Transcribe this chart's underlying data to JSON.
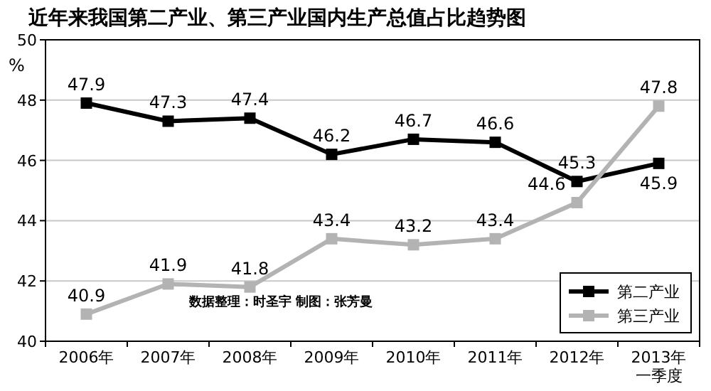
{
  "chart_data": {
    "type": "line",
    "title": "近年来我国第二产业、第三产业国内生产总值占比趋势图",
    "ylabel": "%",
    "categories": [
      "2006年",
      "2007年",
      "2008年",
      "2009年",
      "2010年",
      "2011年",
      "2012年",
      "2013年一季度"
    ],
    "series": [
      {
        "name": "第二产业",
        "color": "#000000",
        "values": [
          47.9,
          47.3,
          47.4,
          46.2,
          46.7,
          46.6,
          45.3,
          45.9
        ]
      },
      {
        "name": "第三产业",
        "color": "#b3b3b3",
        "values": [
          40.9,
          41.9,
          41.8,
          43.4,
          43.2,
          43.4,
          44.6,
          47.8
        ]
      }
    ],
    "ylim": [
      40,
      50
    ],
    "yticks": [
      40,
      42,
      44,
      46,
      48,
      50
    ],
    "grid": "y",
    "legend": "bottom right",
    "marker": "square",
    "data_labels": true,
    "annotations": [
      "数据整理：时圣宇  制图：张芳曼"
    ]
  }
}
